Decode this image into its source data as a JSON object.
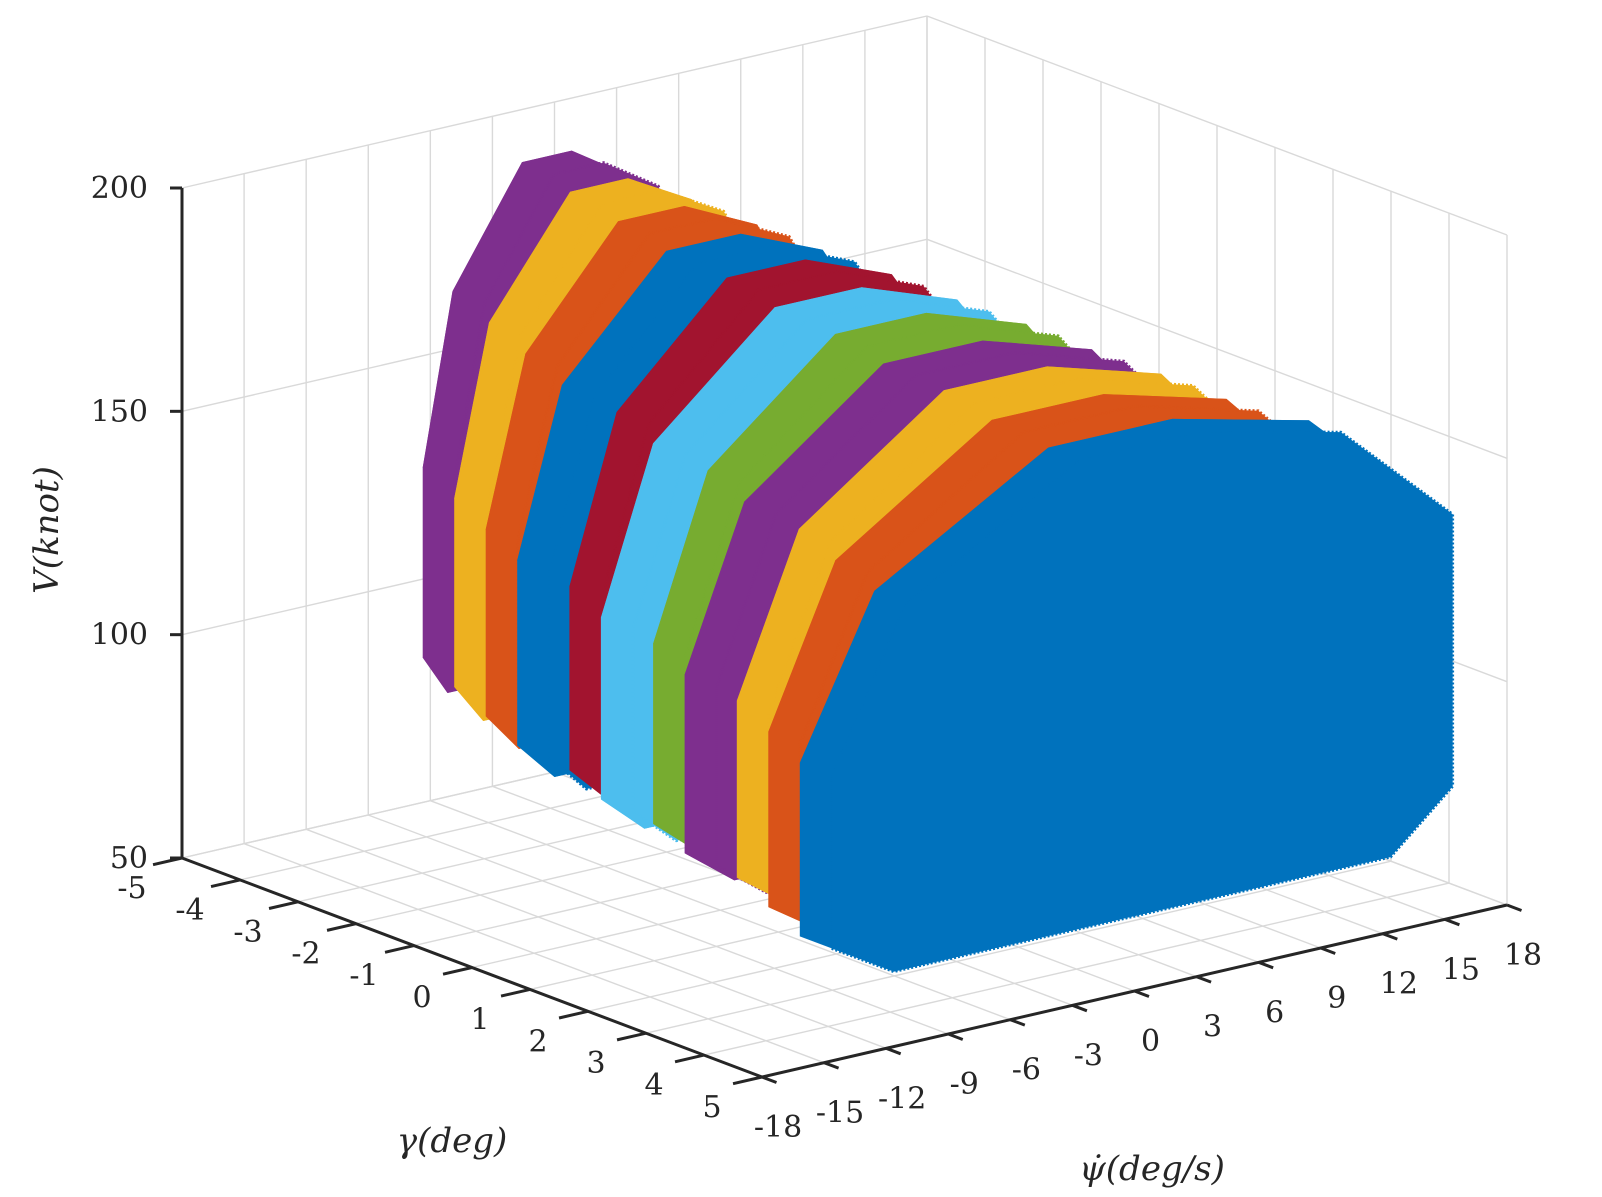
{
  "chart_data": {
    "type": "scatter3d",
    "title": "",
    "xlabel": "ψ̇(deg/s)",
    "ylabel": "γ(deg)",
    "zlabel": "V(knot)",
    "x_ticks": [
      -18,
      -15,
      -12,
      -9,
      -6,
      -3,
      0,
      3,
      6,
      9,
      12,
      15,
      18
    ],
    "y_ticks": [
      -5,
      -4,
      -3,
      -2,
      -1,
      0,
      1,
      2,
      3,
      4,
      5
    ],
    "z_ticks": [
      50,
      100,
      150,
      200
    ],
    "x_tick_labels": [
      "-18",
      "-15",
      "-12",
      "-9",
      "-6",
      "-3",
      "0",
      "3",
      "6",
      "9",
      "12",
      "15",
      "18"
    ],
    "y_tick_labels": [
      "-5",
      "-4",
      "-3",
      "-2",
      "-1",
      "0",
      "1",
      "2",
      "3",
      "4",
      "5"
    ],
    "z_tick_labels": [
      "50",
      "100",
      "150",
      "200"
    ],
    "xlim": [
      -18,
      18
    ],
    "ylim": [
      -5,
      5
    ],
    "zlim": [
      50,
      200
    ],
    "grid": true,
    "series": [
      {
        "gamma": -4.5,
        "color": "#7E2F8E",
        "psi_range": [
          -7,
          5
        ],
        "v_range": [
          75,
          190
        ]
      },
      {
        "gamma": -3.6,
        "color": "#EDB120",
        "psi_range": [
          -8,
          6
        ],
        "v_range": [
          74,
          188
        ]
      },
      {
        "gamma": -2.7,
        "color": "#D95319",
        "psi_range": [
          -9,
          7
        ],
        "v_range": [
          73,
          186
        ]
      },
      {
        "gamma": -1.8,
        "color": "#0072BD",
        "psi_range": [
          -10,
          8
        ],
        "v_range": [
          72,
          184
        ]
      },
      {
        "gamma": -0.9,
        "color": "#A2142F",
        "psi_range": [
          -10,
          9
        ],
        "v_range": [
          71,
          182
        ]
      },
      {
        "gamma": 0.0,
        "color": "#4DBEEE",
        "psi_range": [
          -11,
          10
        ],
        "v_range": [
          70,
          180
        ]
      },
      {
        "gamma": 0.9,
        "color": "#77AC30",
        "psi_range": [
          -11,
          11
        ],
        "v_range": [
          69,
          178
        ]
      },
      {
        "gamma": 1.8,
        "color": "#7E2F8E",
        "psi_range": [
          -12,
          12
        ],
        "v_range": [
          68,
          176
        ]
      },
      {
        "gamma": 2.7,
        "color": "#EDB120",
        "psi_range": [
          -12,
          13
        ],
        "v_range": [
          67,
          174
        ]
      },
      {
        "gamma": 3.6,
        "color": "#D95319",
        "psi_range": [
          -13,
          14
        ],
        "v_range": [
          66,
          172
        ]
      },
      {
        "gamma": 4.5,
        "color": "#0072BD",
        "psi_range": [
          -14,
          16
        ],
        "v_range": [
          65,
          170
        ]
      }
    ]
  }
}
